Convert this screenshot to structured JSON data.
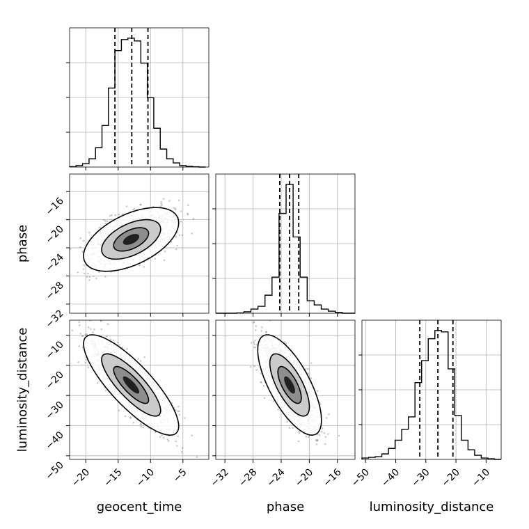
{
  "chart_data": {
    "type": "corner",
    "parameters": [
      "geocent_time",
      "phase",
      "luminosity_distance"
    ],
    "ranges": {
      "geocent_time": [
        -22.5,
        -1.0
      ],
      "phase": [
        -33.3,
        -13.5
      ],
      "luminosity_distance": [
        -51.2,
        -5.0
      ]
    },
    "ticks": {
      "geocent_time": [
        -20,
        -15,
        -10,
        -5
      ],
      "phase": [
        -32,
        -28,
        -24,
        -20,
        -16
      ],
      "luminosity_distance": [
        -50,
        -40,
        -30,
        -20,
        -10
      ]
    },
    "tick_labels": {
      "geocent_time": [
        "−20",
        "−15",
        "−10",
        "−5"
      ],
      "phase": [
        "−32",
        "−28",
        "−24",
        "−20",
        "−16"
      ],
      "luminosity_distance": [
        "−50",
        "−40",
        "−30",
        "−20",
        "−10"
      ]
    },
    "grid": true,
    "quantiles": {
      "geocent_time": [
        -15.5,
        -12.9,
        -10.4
      ],
      "phase": [
        -24.2,
        -22.8,
        -21.5
      ],
      "luminosity_distance": [
        -32.0,
        -26.0,
        -21.0
      ]
    },
    "histograms": {
      "geocent_time": {
        "edges": [
          -22.5,
          -21.5,
          -20.5,
          -19.5,
          -18.5,
          -17.5,
          -16.5,
          -15.5,
          -14.5,
          -13.5,
          -12.5,
          -11.5,
          -10.5,
          -9.5,
          -8.5,
          -7.5,
          -6.5,
          -5.5,
          -4.5,
          -3.5,
          -2.5,
          -1.5
        ],
        "counts": [
          0.003,
          0.01,
          0.025,
          0.06,
          0.14,
          0.3,
          0.57,
          0.84,
          0.92,
          0.93,
          0.91,
          0.75,
          0.5,
          0.28,
          0.13,
          0.06,
          0.03,
          0.01,
          0.005,
          0.002,
          0.0
        ]
      },
      "phase": {
        "edges": [
          -33.3,
          -32.3,
          -31.3,
          -30.3,
          -29.3,
          -28.3,
          -27.3,
          -26.3,
          -25.3,
          -24.3,
          -23.3,
          -22.3,
          -21.3,
          -20.3,
          -19.3,
          -18.3,
          -17.3,
          -16.3,
          -15.3,
          -14.3,
          -13.5
        ],
        "counts": [
          0.0,
          0.0,
          0.0,
          0.002,
          0.01,
          0.03,
          0.05,
          0.13,
          0.26,
          0.72,
          0.93,
          0.55,
          0.26,
          0.09,
          0.06,
          0.03,
          0.015,
          0.005,
          0.0,
          0.0
        ]
      },
      "luminosity_distance": {
        "edges": [
          -51.2,
          -49.0,
          -46.8,
          -44.6,
          -42.4,
          -40.2,
          -38.0,
          -35.8,
          -33.6,
          -31.4,
          -29.2,
          -27.0,
          -24.8,
          -22.6,
          -20.4,
          -18.2,
          -16.0,
          -13.8,
          -11.6,
          -9.4,
          -7.2,
          -5.0
        ],
        "counts": [
          0.01,
          0.015,
          0.02,
          0.04,
          0.08,
          0.14,
          0.22,
          0.31,
          0.56,
          0.72,
          0.88,
          0.94,
          0.93,
          0.66,
          0.32,
          0.14,
          0.07,
          0.03,
          0.01,
          0.005,
          0.0
        ]
      }
    },
    "pairs": [
      {
        "x": "geocent_time",
        "y": "phase",
        "mean": [
          -13.0,
          -22.8
        ],
        "std": [
          3.0,
          1.85
        ],
        "corr": 0.52,
        "contour_levels_sigma": [
          1,
          2,
          3
        ]
      },
      {
        "x": "geocent_time",
        "y": "luminosity_distance",
        "mean": [
          -13.0,
          -26.5
        ],
        "std": [
          3.0,
          6.8
        ],
        "corr": -0.82,
        "contour_levels_sigma": [
          1,
          2,
          3
        ]
      },
      {
        "x": "phase",
        "y": "luminosity_distance",
        "mean": [
          -22.8,
          -26.5
        ],
        "std": [
          1.85,
          6.8
        ],
        "corr": -0.7,
        "contour_levels_sigma": [
          1,
          2,
          3
        ]
      }
    ]
  }
}
